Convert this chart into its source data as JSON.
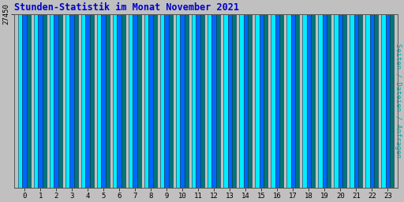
{
  "title": "Stunden-Statistik im Monat November 2021",
  "title_color": "#0000cc",
  "ylabel": "Seiten / Dateien / Anfragen",
  "ylabel_color": "#00aaaa",
  "background_color": "#c0c0c0",
  "plot_bg_color": "#c0c0c0",
  "ytick_label": "27450",
  "ytick_val": 27450,
  "hours": [
    0,
    1,
    2,
    3,
    4,
    5,
    6,
    7,
    8,
    9,
    10,
    11,
    12,
    13,
    14,
    15,
    16,
    17,
    18,
    19,
    20,
    21,
    22,
    23
  ],
  "seiten": [
    27440,
    27455,
    27465,
    27468,
    27453,
    27449,
    27458,
    27454,
    27464,
    27450,
    27449,
    27450,
    27453,
    27449,
    27452,
    27453,
    27452,
    27438,
    27437,
    27428,
    27443,
    27446,
    27438,
    27446
  ],
  "dateien": [
    27450,
    27462,
    27472,
    27474,
    27459,
    27455,
    27465,
    27459,
    27470,
    27456,
    27455,
    27456,
    27459,
    27455,
    27458,
    27459,
    27457,
    27443,
    27442,
    27433,
    27448,
    27451,
    27443,
    27451
  ],
  "anfragen": [
    27443,
    27459,
    27468,
    27471,
    27456,
    27451,
    27461,
    27456,
    27466,
    27452,
    27451,
    27452,
    27456,
    27451,
    27454,
    27455,
    27454,
    27440,
    27439,
    27430,
    27445,
    27448,
    27440,
    27448
  ],
  "bar_width": 0.27,
  "seiten_color": "#00eeff",
  "dateien_color": "#0066ff",
  "anfragen_color": "#007777",
  "edge_color": "#003355",
  "ylim_min": 0,
  "ylim_max": 27490,
  "figwidth": 5.12,
  "figheight": 2.56,
  "dpi": 100
}
